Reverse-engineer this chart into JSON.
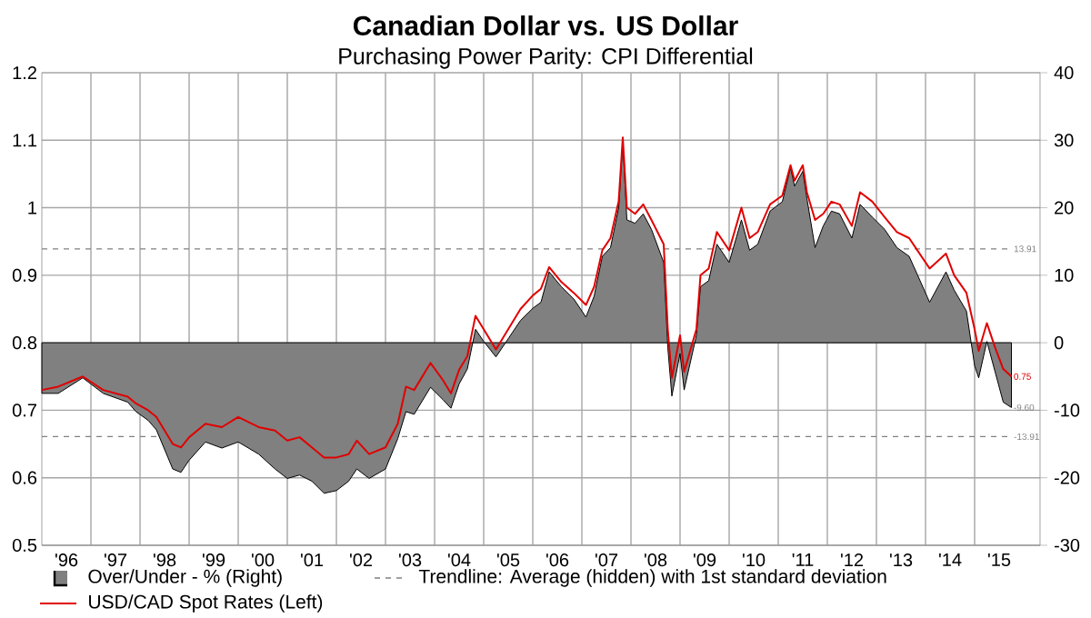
{
  "chart_data": {
    "type": "line",
    "title": "Canadian Dollar vs. US Dollar",
    "subtitle": "Purchasing Power Parity: CPI Differential",
    "annotations": [
      "Trendline: Average (hidden) with 1st standard deviation"
    ],
    "x": [
      "1996-01",
      "1996-05",
      "1996-11",
      "1997-04",
      "1997-10",
      "1997-12",
      "1998-03",
      "1998-05",
      "1998-09",
      "1998-11",
      "1999-01",
      "1999-05",
      "1999-09",
      "2000-01",
      "2000-06",
      "2000-10",
      "2001-01",
      "2001-04",
      "2001-07",
      "2001-10",
      "2002-01",
      "2002-04",
      "2002-06",
      "2002-09",
      "2003-01",
      "2003-04",
      "2003-06",
      "2003-08",
      "2003-12",
      "2004-03",
      "2004-05",
      "2004-07",
      "2004-09",
      "2004-11",
      "2005-01",
      "2005-04",
      "2005-07",
      "2005-10",
      "2006-01",
      "2006-03",
      "2006-05",
      "2006-08",
      "2006-11",
      "2007-02",
      "2007-04",
      "2007-06",
      "2007-08",
      "2007-10",
      "2007-11",
      "2007-12",
      "2008-02",
      "2008-04",
      "2008-06",
      "2008-09",
      "2008-10",
      "2008-11",
      "2009-01",
      "2009-02",
      "2009-05",
      "2009-06",
      "2009-08",
      "2009-10",
      "2010-01",
      "2010-04",
      "2010-06",
      "2010-08",
      "2010-11",
      "2011-02",
      "2011-04",
      "2011-05",
      "2011-07",
      "2011-08",
      "2011-10",
      "2011-12",
      "2012-02",
      "2012-04",
      "2012-07",
      "2012-09",
      "2012-12",
      "2013-03",
      "2013-06",
      "2013-09",
      "2013-11",
      "2014-02",
      "2014-06",
      "2014-08",
      "2014-11",
      "2015-01",
      "2015-02",
      "2015-04",
      "2015-06",
      "2015-08",
      "2015-10"
    ],
    "series": [
      {
        "name": "Over/Under - % (Right)",
        "type": "area",
        "axis": "y2",
        "color": "#808080",
        "values": [
          -7.5,
          -7.5,
          -5.2,
          -7.5,
          -8.8,
          -10.2,
          -11.5,
          -12.9,
          -18.7,
          -19.2,
          -17.4,
          -14.7,
          -15.6,
          -14.7,
          -16.5,
          -18.7,
          -20.1,
          -19.6,
          -20.5,
          -22.3,
          -21.9,
          -20.5,
          -18.7,
          -20.1,
          -18.7,
          -14.2,
          -10.2,
          -10.6,
          -6.6,
          -8.4,
          -9.7,
          -6.1,
          -3.9,
          2.0,
          0.2,
          -2.1,
          0.6,
          3.3,
          5.1,
          6.0,
          10.5,
          8.3,
          6.5,
          3.8,
          6.9,
          12.8,
          14.1,
          20.0,
          29.9,
          18.2,
          17.7,
          19.1,
          16.8,
          11.9,
          -0.7,
          -7.9,
          -1.6,
          -7.0,
          1.1,
          8.3,
          9.2,
          14.6,
          11.9,
          18.2,
          13.7,
          14.6,
          19.5,
          20.9,
          25.9,
          23.2,
          25.4,
          21.4,
          14.1,
          17.3,
          19.5,
          19.1,
          15.5,
          20.5,
          18.6,
          16.8,
          14.1,
          12.8,
          10.1,
          6.0,
          10.5,
          7.8,
          4.7,
          -3.4,
          -5.2,
          0.2,
          -4.3,
          -8.8,
          -9.6
        ],
        "value_labels": [
          null,
          null,
          null,
          null,
          null,
          null,
          null,
          null,
          null,
          null,
          null,
          null,
          null,
          null,
          null,
          null,
          null,
          null,
          null,
          null,
          null,
          null,
          null,
          null,
          null,
          null,
          null,
          null,
          null,
          null,
          null,
          null,
          null,
          null,
          null,
          null,
          null,
          null,
          null,
          null,
          null,
          null,
          null,
          null,
          null,
          null,
          null,
          null,
          null,
          null,
          null,
          null,
          null,
          null,
          null,
          null,
          null,
          null,
          null,
          null,
          null,
          null,
          null,
          null,
          null,
          null,
          null,
          null,
          null,
          null,
          null,
          null,
          null,
          null,
          null,
          null,
          null,
          null,
          null,
          null,
          null,
          null,
          null,
          null,
          null,
          null,
          null,
          null,
          null,
          null,
          null,
          null,
          "-9.60"
        ]
      },
      {
        "name": "USD/CAD Spot Rates (Left)",
        "type": "line",
        "axis": "y",
        "color": "#e00000",
        "values": [
          0.73,
          0.735,
          0.75,
          0.73,
          0.72,
          0.71,
          0.7,
          0.69,
          0.65,
          0.645,
          0.66,
          0.68,
          0.675,
          0.69,
          0.675,
          0.67,
          0.655,
          0.66,
          0.645,
          0.63,
          0.63,
          0.635,
          0.655,
          0.635,
          0.645,
          0.68,
          0.735,
          0.73,
          0.77,
          0.745,
          0.725,
          0.76,
          0.78,
          0.84,
          0.82,
          0.79,
          0.82,
          0.85,
          0.87,
          0.88,
          0.912,
          0.89,
          0.874,
          0.856,
          0.883,
          0.937,
          0.955,
          1.01,
          1.104,
          1.0,
          0.991,
          1.005,
          0.982,
          0.946,
          0.82,
          0.748,
          0.811,
          0.757,
          0.82,
          0.9,
          0.91,
          0.964,
          0.937,
          1.0,
          0.955,
          0.964,
          1.005,
          1.018,
          1.063,
          1.04,
          1.063,
          1.023,
          0.982,
          0.991,
          1.009,
          1.005,
          0.973,
          1.023,
          1.009,
          0.986,
          0.964,
          0.955,
          0.937,
          0.91,
          0.932,
          0.9,
          0.874,
          0.82,
          0.788,
          0.829,
          0.793,
          0.761,
          0.75
        ],
        "value_labels": [
          null,
          null,
          null,
          null,
          null,
          null,
          null,
          null,
          null,
          null,
          null,
          null,
          null,
          null,
          null,
          null,
          null,
          null,
          null,
          null,
          null,
          null,
          null,
          null,
          null,
          null,
          null,
          null,
          null,
          null,
          null,
          null,
          null,
          null,
          null,
          null,
          null,
          null,
          null,
          null,
          null,
          null,
          null,
          null,
          null,
          null,
          null,
          null,
          null,
          null,
          null,
          null,
          null,
          null,
          null,
          null,
          null,
          null,
          null,
          null,
          null,
          null,
          null,
          null,
          null,
          null,
          null,
          null,
          null,
          null,
          null,
          null,
          null,
          null,
          null,
          null,
          null,
          null,
          null,
          null,
          null,
          null,
          null,
          null,
          null,
          null,
          null,
          null,
          null,
          null,
          null,
          null,
          "0.75"
        ]
      }
    ],
    "xlim": [
      "1996-01",
      "2016-05"
    ],
    "xticks": [
      {
        "value": "1996-07",
        "label": "'96"
      },
      {
        "value": "1997-07",
        "label": "'97"
      },
      {
        "value": "1998-07",
        "label": "'98"
      },
      {
        "value": "1999-07",
        "label": "'99"
      },
      {
        "value": "2000-07",
        "label": "'00"
      },
      {
        "value": "2001-07",
        "label": "'01"
      },
      {
        "value": "2002-07",
        "label": "'02"
      },
      {
        "value": "2003-07",
        "label": "'03"
      },
      {
        "value": "2004-07",
        "label": "'04"
      },
      {
        "value": "2005-07",
        "label": "'05"
      },
      {
        "value": "2006-07",
        "label": "'06"
      },
      {
        "value": "2007-07",
        "label": "'07"
      },
      {
        "value": "2008-07",
        "label": "'08"
      },
      {
        "value": "2009-07",
        "label": "'09"
      },
      {
        "value": "2010-07",
        "label": "'10"
      },
      {
        "value": "2011-07",
        "label": "'11"
      },
      {
        "value": "2012-07",
        "label": "'12"
      },
      {
        "value": "2013-07",
        "label": "'13"
      },
      {
        "value": "2014-07",
        "label": "'14"
      },
      {
        "value": "2015-07",
        "label": "'15"
      },
      {
        "value": "1997",
        "label": null
      },
      {
        "value": "1998",
        "label": null
      },
      {
        "value": "1999",
        "label": null
      },
      {
        "value": "2000",
        "label": null
      },
      {
        "value": "2001",
        "label": null
      },
      {
        "value": "2002",
        "label": null
      },
      {
        "value": "2003",
        "label": null
      },
      {
        "value": "2004",
        "label": null
      },
      {
        "value": "2005",
        "label": null
      },
      {
        "value": "2006",
        "label": null
      },
      {
        "value": "2007",
        "label": null
      },
      {
        "value": "2008",
        "label": null
      },
      {
        "value": "2009",
        "label": null
      },
      {
        "value": "2010",
        "label": null
      },
      {
        "value": "2011",
        "label": null
      },
      {
        "value": "2012",
        "label": null
      },
      {
        "value": "2013",
        "label": null
      },
      {
        "value": "2014",
        "label": null
      },
      {
        "value": "2015",
        "label": null
      }
    ],
    "ylim": [
      0.5,
      1.2
    ],
    "yticks": [
      0.5,
      0.6,
      0.7,
      0.8,
      0.9,
      1,
      1.1,
      1.2
    ],
    "y2lim": [
      -30,
      40
    ],
    "y2ticks": [
      -30,
      -20,
      -10,
      0,
      10,
      20,
      30,
      40
    ],
    "ref_lines": [
      {
        "axis": "y2",
        "value": 13.91,
        "label": "13.91",
        "color": "#808080",
        "line_style": "dashed"
      },
      {
        "axis": "y2",
        "value": -13.91,
        "label": "-13.91",
        "color": "#808080",
        "line_style": "dashed"
      }
    ],
    "grid": true,
    "legend": "bottom"
  }
}
